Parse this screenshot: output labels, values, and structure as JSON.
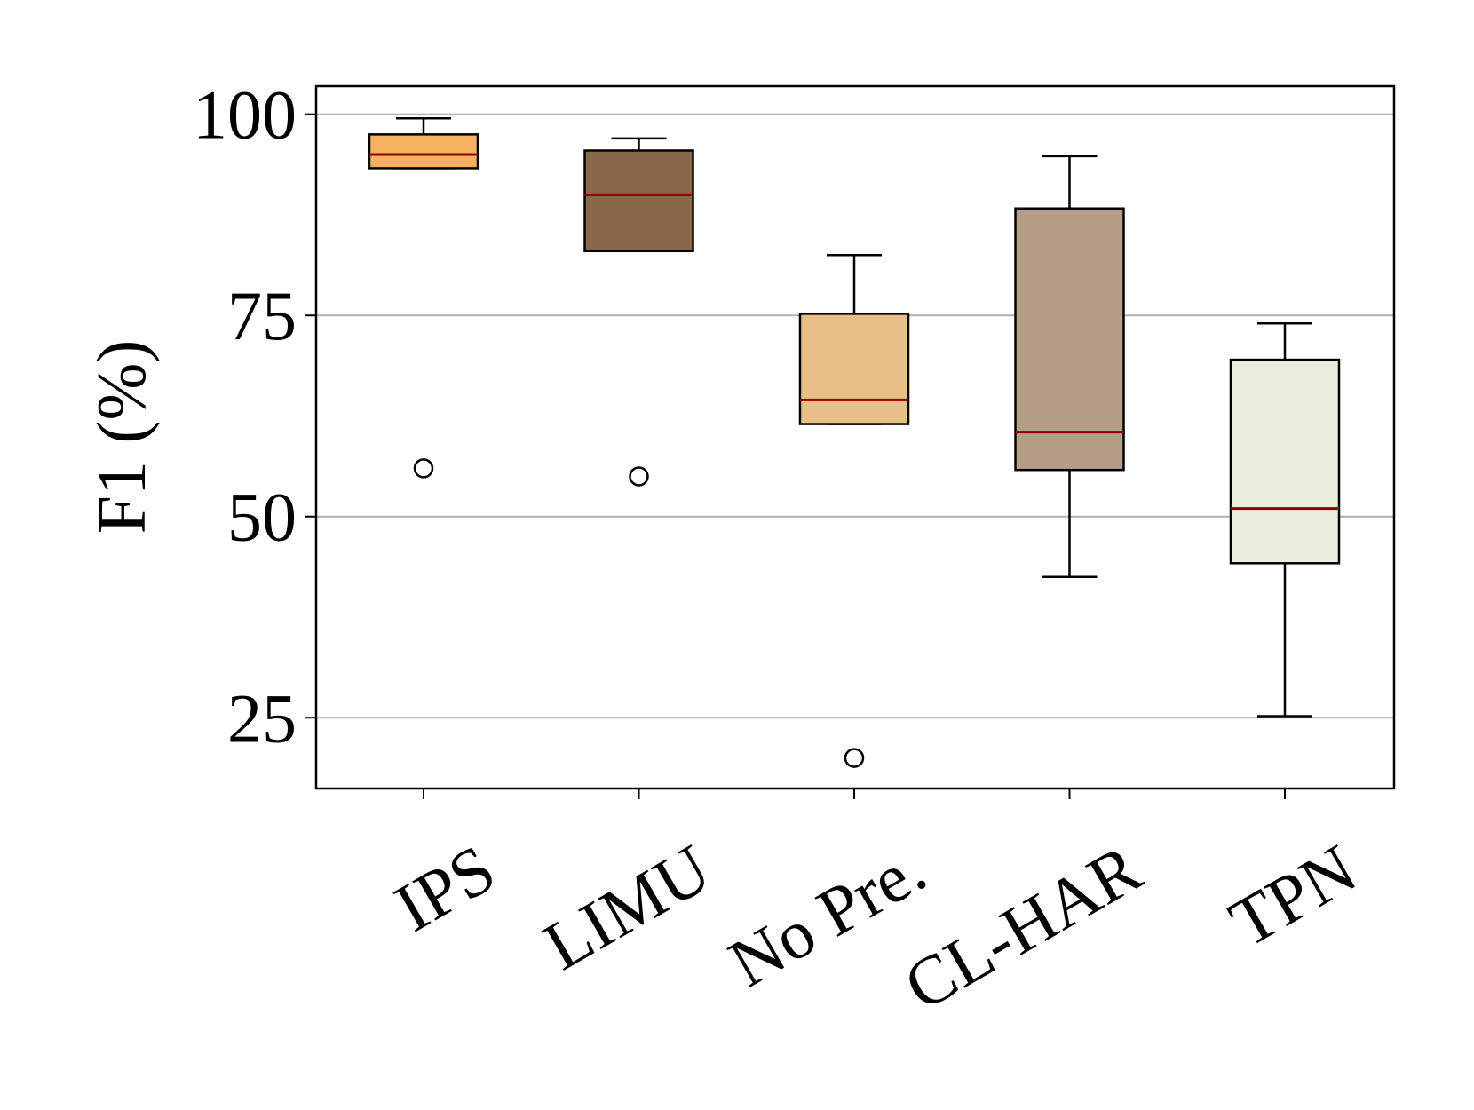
{
  "chart_data": {
    "type": "box",
    "title": "",
    "xlabel": "",
    "ylabel": "F1 (%)",
    "ylim": [
      16.2,
      103.5
    ],
    "yticks": [
      25,
      50,
      75,
      100
    ],
    "ytick_labels": [
      "25",
      "50",
      "75",
      "100"
    ],
    "grid": "horizontal",
    "legend": "none",
    "categories": [
      "IPS",
      "LIMU",
      "No Pre.",
      "CL-HAR",
      "TPN"
    ],
    "boxes": [
      {
        "label": "IPS",
        "whisker_low": 93.3,
        "q1": 93.3,
        "median": 95.0,
        "q3": 97.5,
        "whisker_high": 99.5,
        "outliers": [
          56.0
        ],
        "color": "#f5b25e"
      },
      {
        "label": "LIMU",
        "whisker_low": 83.0,
        "q1": 83.0,
        "median": 90.0,
        "q3": 95.5,
        "whisker_high": 97.0,
        "outliers": [
          55.0
        ],
        "color": "#886849"
      },
      {
        "label": "No Pre.",
        "whisker_low": 61.5,
        "q1": 61.5,
        "median": 64.5,
        "q3": 75.2,
        "whisker_high": 82.5,
        "outliers": [
          20.0
        ],
        "color": "#e8c087"
      },
      {
        "label": "CL-HAR",
        "whisker_low": 42.5,
        "q1": 55.8,
        "median": 60.5,
        "q3": 88.3,
        "whisker_high": 94.8,
        "outliers": [],
        "color": "#b69d86"
      },
      {
        "label": "TPN",
        "whisker_low": 25.2,
        "q1": 44.2,
        "median": 51.0,
        "q3": 69.5,
        "whisker_high": 74.0,
        "outliers": [],
        "color": "#e9eddc"
      }
    ],
    "median_color": "#8b0000",
    "grid_color": "#b0b0b0"
  }
}
